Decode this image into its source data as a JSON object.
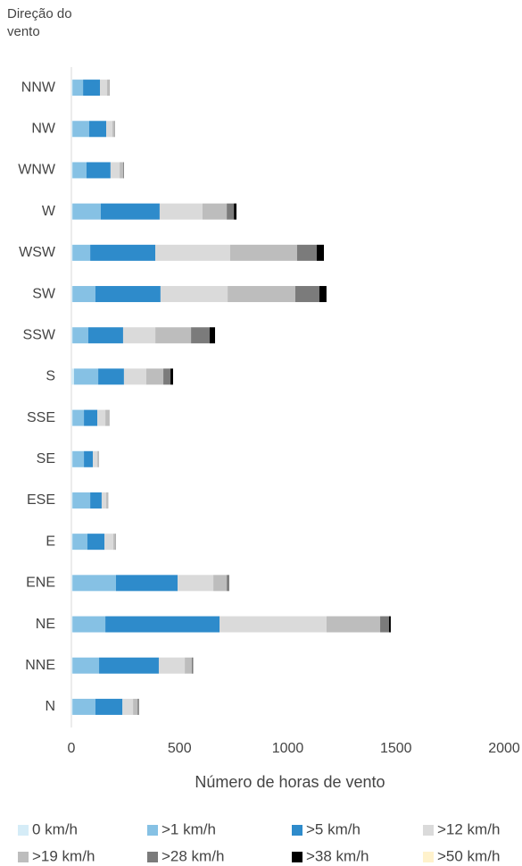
{
  "chart_data": {
    "type": "stacked_barh",
    "ylabel": "Direção do vento",
    "xlabel": "Número de horas de vento",
    "categories": [
      "N",
      "NNE",
      "NE",
      "ENE",
      "E",
      "ESE",
      "SE",
      "SSE",
      "S",
      "SSW",
      "SW",
      "WSW",
      "W",
      "WNW",
      "NW",
      "NNW"
    ],
    "series": [
      {
        "name": "0 km/h",
        "color": "#d5ecf7",
        "values": [
          5,
          5,
          5,
          5,
          5,
          5,
          5,
          5,
          12,
          5,
          5,
          5,
          5,
          5,
          5,
          5
        ]
      },
      {
        "name": ">1 km/h",
        "color": "#86c1e4",
        "values": [
          106,
          123,
          152,
          201,
          69,
          82,
          53,
          53,
          112,
          73,
          106,
          82,
          131,
          65,
          77,
          49
        ]
      },
      {
        "name": ">5 km/h",
        "color": "#2e8bcb",
        "values": [
          125,
          276,
          528,
          285,
          79,
          53,
          41,
          62,
          119,
          161,
          301,
          301,
          272,
          111,
          79,
          78
        ]
      },
      {
        "name": ">12 km/h",
        "color": "#dadada",
        "values": [
          49,
          120,
          494,
          165,
          41,
          21,
          21,
          37,
          103,
          149,
          310,
          346,
          198,
          42,
          29,
          33
        ]
      },
      {
        "name": ">19 km/h",
        "color": "#bdbdbd",
        "values": [
          21,
          33,
          248,
          62,
          8,
          8,
          8,
          16,
          79,
          165,
          313,
          309,
          112,
          16,
          8,
          8
        ]
      },
      {
        "name": ">28 km/h",
        "color": "#7b7b7b",
        "values": [
          3,
          3,
          41,
          8,
          1,
          1,
          0,
          2,
          33,
          86,
          111,
          91,
          33,
          2,
          1,
          1
        ]
      },
      {
        "name": ">38 km/h",
        "color": "#000000",
        "values": [
          2,
          2,
          8,
          2,
          1,
          0,
          0,
          0,
          12,
          25,
          33,
          33,
          12,
          1,
          1,
          1
        ]
      },
      {
        "name": ">50 km/h",
        "color": "#fff2cc",
        "values": [
          0,
          0,
          0,
          0,
          0,
          0,
          0,
          0,
          0,
          0,
          0,
          0,
          0,
          0,
          0,
          0
        ]
      }
    ],
    "xlim": [
      0,
      2000
    ],
    "xticks": [
      0,
      500,
      1000,
      1500,
      2000
    ],
    "grid": false,
    "legend": "bottom"
  }
}
